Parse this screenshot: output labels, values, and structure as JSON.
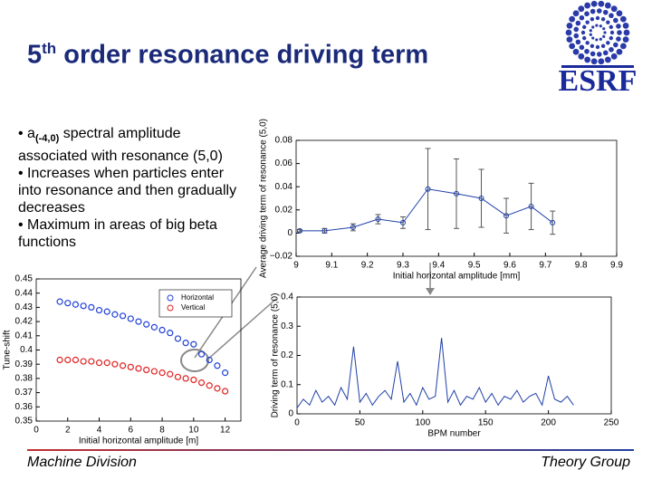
{
  "slide": {
    "title": {
      "base": "5",
      "superscript": "th",
      "rest": "order resonance driving term"
    },
    "logo": "ESRF",
    "bullets": [
      {
        "symbol": "a",
        "subscript": "(-4,0)",
        "text": "spectral amplitude associated with resonance (5,0)"
      },
      {
        "text": "Increases when particles enter into resonance and then gradually decreases"
      },
      {
        "text": "Maximum in areas of big beta functions"
      }
    ],
    "footer_left": "Machine Division",
    "footer_right": "Theory Group"
  },
  "chart_data": [
    {
      "type": "line",
      "xlabel": "Initial horizontal amplitude [mm]",
      "ylabel": "Average driving term of resonance (5,0)",
      "x": [
        9.01,
        9.08,
        9.16,
        9.23,
        9.3,
        9.37,
        9.45,
        9.52,
        9.59,
        9.66,
        9.72
      ],
      "values": [
        0.002,
        0.002,
        0.005,
        0.012,
        0.009,
        0.038,
        0.034,
        0.03,
        0.015,
        0.023,
        0.009
      ],
      "errors": [
        0.001,
        0.002,
        0.003,
        0.004,
        0.005,
        0.035,
        0.03,
        0.025,
        0.015,
        0.02,
        0.01
      ],
      "color": "#1f3fa8",
      "xlim": [
        9,
        9.9
      ],
      "xticks": [
        9,
        9.1,
        9.2,
        9.3,
        9.4,
        9.5,
        9.6,
        9.7,
        9.8,
        9.9
      ],
      "ylim": [
        -0.02,
        0.08
      ],
      "yticks": [
        {
          "value": -0.02,
          "label": "−0.02"
        },
        0,
        0.02,
        0.04,
        0.06,
        0.08
      ]
    },
    {
      "type": "line",
      "xlabel": "BPM number",
      "ylabel": "Driving term of resonance (5,0)",
      "x": [
        0,
        5,
        10,
        15,
        20,
        25,
        30,
        35,
        40,
        45,
        50,
        55,
        60,
        65,
        70,
        75,
        80,
        85,
        90,
        95,
        100,
        105,
        110,
        115,
        120,
        125,
        130,
        135,
        140,
        145,
        150,
        155,
        160,
        165,
        170,
        175,
        180,
        185,
        190,
        195,
        200,
        205,
        210,
        215,
        220
      ],
      "values": [
        0.02,
        0.05,
        0.03,
        0.08,
        0.04,
        0.06,
        0.03,
        0.09,
        0.05,
        0.23,
        0.04,
        0.07,
        0.03,
        0.06,
        0.08,
        0.05,
        0.18,
        0.04,
        0.07,
        0.03,
        0.09,
        0.05,
        0.06,
        0.26,
        0.04,
        0.08,
        0.03,
        0.06,
        0.05,
        0.09,
        0.04,
        0.07,
        0.03,
        0.06,
        0.05,
        0.08,
        0.04,
        0.06,
        0.07,
        0.03,
        0.13,
        0.05,
        0.04,
        0.06,
        0.03
      ],
      "color": "#1f3fa8",
      "xlim": [
        0,
        250
      ],
      "xticks": [
        0,
        50,
        100,
        150,
        200,
        250
      ],
      "ylim": [
        0,
        0.4
      ],
      "yticks": [
        0,
        0.1,
        0.2,
        0.3,
        0.4
      ]
    },
    {
      "type": "scatter",
      "xlabel": "Initial horizontal amplitude [m]",
      "ylabel": "Tune-shift",
      "x": [
        1.5,
        2,
        2.5,
        3,
        3.5,
        4,
        4.5,
        5,
        5.5,
        6,
        6.5,
        7,
        7.5,
        8,
        8.5,
        9,
        9.5,
        10,
        10.5,
        11,
        11.5,
        12
      ],
      "series": [
        {
          "name": "Horizontal",
          "color": "#1f3fd8",
          "values": [
            0.434,
            0.433,
            0.432,
            0.431,
            0.43,
            0.428,
            0.427,
            0.425,
            0.424,
            0.422,
            0.42,
            0.418,
            0.416,
            0.414,
            0.412,
            0.408,
            0.405,
            0.404,
            0.397,
            0.393,
            0.389,
            0.384
          ]
        },
        {
          "name": "Vertical",
          "color": "#e02020",
          "values": [
            0.393,
            0.393,
            0.393,
            0.392,
            0.392,
            0.391,
            0.391,
            0.39,
            0.389,
            0.388,
            0.387,
            0.386,
            0.385,
            0.384,
            0.383,
            0.381,
            0.38,
            0.379,
            0.377,
            0.375,
            0.373,
            0.371
          ]
        }
      ],
      "legend": "upper right",
      "xlim": [
        0,
        13
      ],
      "xticks": [
        0,
        2,
        4,
        6,
        8,
        10,
        12
      ],
      "ylim": [
        0.35,
        0.45
      ],
      "yticks": [
        0.45,
        0.44,
        0.43,
        0.42,
        0.41,
        0.4,
        0.39,
        0.38,
        0.37,
        0.36,
        0.35
      ]
    }
  ]
}
